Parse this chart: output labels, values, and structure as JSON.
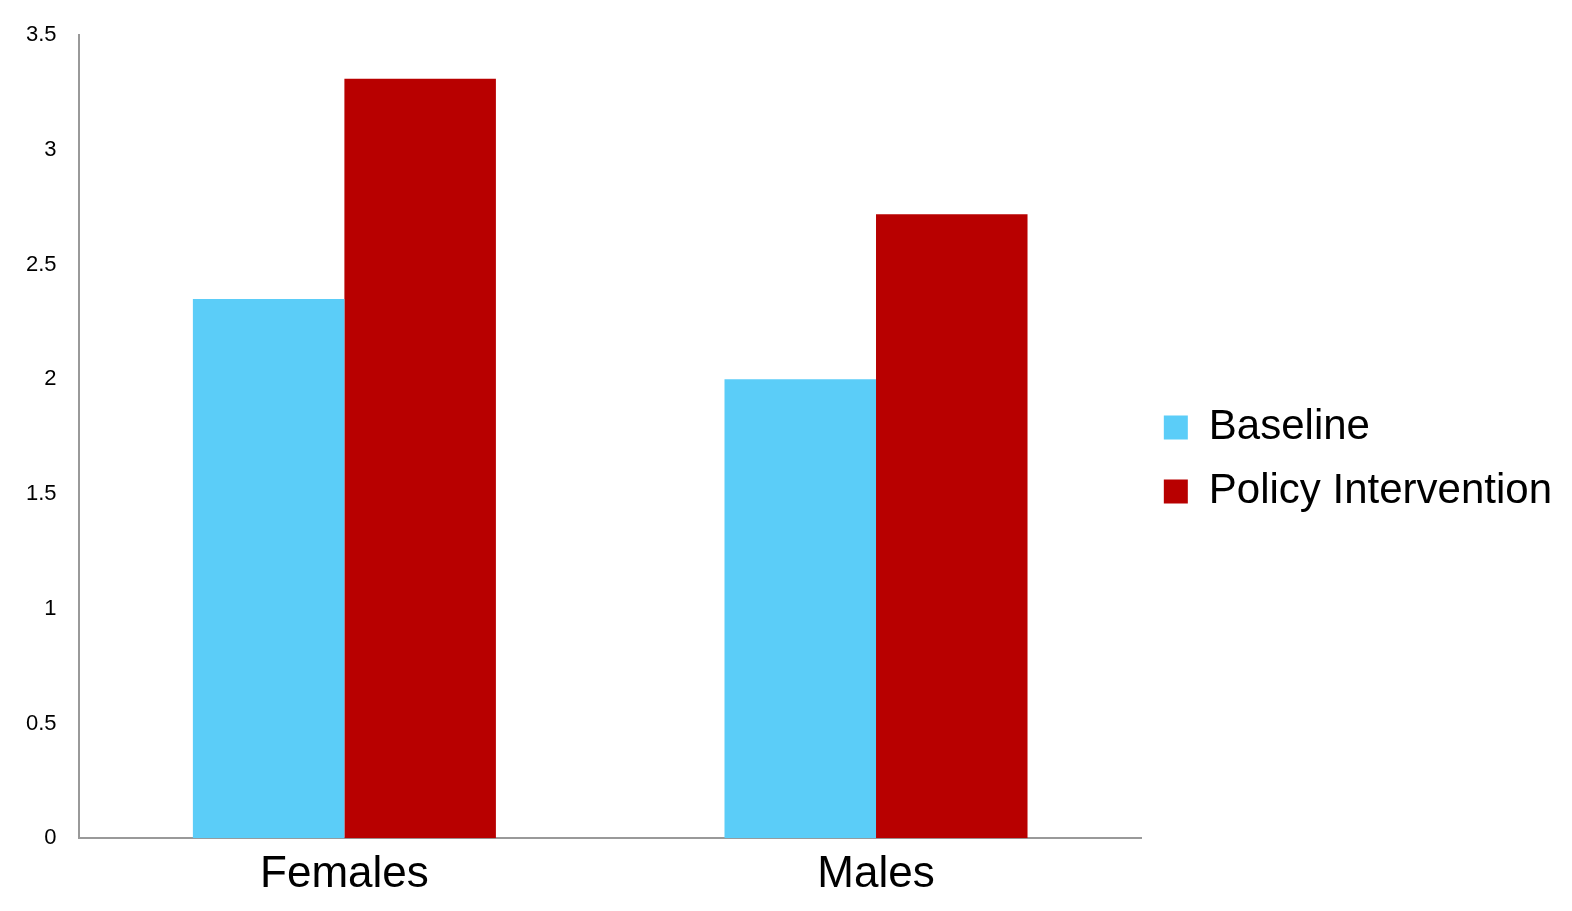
{
  "chart_data": {
    "type": "bar",
    "categories": [
      "Females",
      "Males"
    ],
    "series": [
      {
        "name": "Baseline",
        "color": "#5bcdf8",
        "values": [
          2.35,
          2.0
        ]
      },
      {
        "name": "Policy Intervention",
        "color": "#b80000",
        "values": [
          3.31,
          2.72
        ]
      }
    ],
    "ylim": [
      0,
      3.5
    ],
    "yticks": [
      0,
      0.5,
      1,
      1.5,
      2,
      2.5,
      3,
      3.5
    ],
    "grid": false,
    "legend": "right"
  }
}
